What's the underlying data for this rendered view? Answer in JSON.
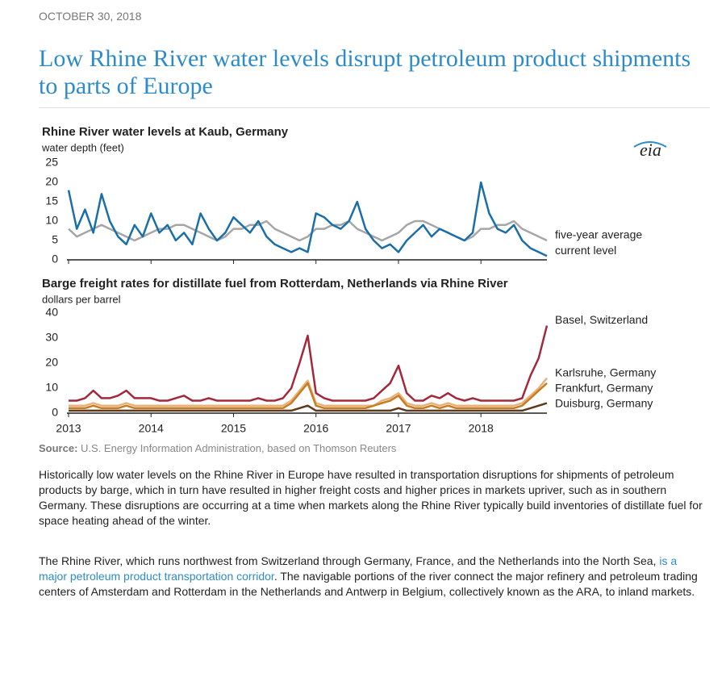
{
  "header": {
    "date": "OCTOBER 30, 2018",
    "title": "Low Rhine River water levels disrupt petroleum product shipments to parts of Europe"
  },
  "logo": "eia",
  "chart_data": [
    {
      "type": "line",
      "title": "Rhine River water levels at Kaub, Germany",
      "subtitle": "water depth (feet)",
      "x": [
        2013.0,
        2013.1,
        2013.2,
        2013.3,
        2013.4,
        2013.5,
        2013.6,
        2013.7,
        2013.8,
        2013.9,
        2014.0,
        2014.1,
        2014.2,
        2014.3,
        2014.4,
        2014.5,
        2014.6,
        2014.7,
        2014.8,
        2014.9,
        2015.0,
        2015.1,
        2015.2,
        2015.3,
        2015.4,
        2015.5,
        2015.6,
        2015.7,
        2015.8,
        2015.9,
        2016.0,
        2016.1,
        2016.2,
        2016.3,
        2016.4,
        2016.5,
        2016.6,
        2016.7,
        2016.8,
        2016.9,
        2017.0,
        2017.1,
        2017.2,
        2017.3,
        2017.4,
        2017.5,
        2017.6,
        2017.7,
        2017.8,
        2017.9,
        2018.0,
        2018.1,
        2018.2,
        2018.3,
        2018.4,
        2018.5,
        2018.6,
        2018.7,
        2018.8
      ],
      "series": [
        {
          "name": "five-year average",
          "color": "#a6a6a6",
          "values": [
            8,
            6,
            7,
            8,
            9,
            8,
            7,
            6,
            5,
            6,
            7,
            8,
            8,
            9,
            9,
            8,
            7,
            6,
            5,
            6,
            8,
            8,
            9,
            9,
            10,
            8,
            7,
            6,
            5,
            6,
            8,
            8,
            9,
            9,
            10,
            8,
            7,
            6,
            5,
            6,
            7,
            9,
            10,
            10,
            9,
            8,
            7,
            6,
            5,
            6,
            8,
            8,
            9,
            9,
            10,
            8,
            7,
            6,
            5
          ]
        },
        {
          "name": "current level",
          "color": "#1b6fa8",
          "values": [
            18,
            8,
            13,
            7,
            17,
            10,
            6,
            4,
            9,
            6,
            12,
            7,
            9,
            5,
            7,
            4,
            12,
            8,
            5,
            7,
            11,
            9,
            7,
            10,
            6,
            4,
            3,
            2,
            3,
            2,
            12,
            11,
            9,
            8,
            10,
            15,
            8,
            5,
            3,
            4,
            2,
            5,
            7,
            9,
            6,
            8,
            7,
            6,
            5,
            7,
            20,
            12,
            8,
            7,
            9,
            5,
            3,
            2,
            1
          ]
        }
      ],
      "xlim": [
        2013,
        2018.8
      ],
      "xticks": [
        2013,
        2014,
        2015,
        2016,
        2017,
        2018
      ],
      "show_xtick_labels": false,
      "ylim": [
        0,
        25
      ],
      "yticks": [
        0,
        5,
        10,
        15,
        20,
        25
      ],
      "grid": false
    },
    {
      "type": "line",
      "title": "Barge freight rates for distillate fuel from Rotterdam, Netherlands via Rhine River",
      "subtitle": "dollars per barrel",
      "x": [
        2013.0,
        2013.1,
        2013.2,
        2013.3,
        2013.4,
        2013.5,
        2013.6,
        2013.7,
        2013.8,
        2013.9,
        2014.0,
        2014.1,
        2014.2,
        2014.3,
        2014.4,
        2014.5,
        2014.6,
        2014.7,
        2014.8,
        2014.9,
        2015.0,
        2015.1,
        2015.2,
        2015.3,
        2015.4,
        2015.5,
        2015.6,
        2015.7,
        2015.8,
        2015.9,
        2016.0,
        2016.1,
        2016.2,
        2016.3,
        2016.4,
        2016.5,
        2016.6,
        2016.7,
        2016.8,
        2016.9,
        2017.0,
        2017.1,
        2017.2,
        2017.3,
        2017.4,
        2017.5,
        2017.6,
        2017.7,
        2017.8,
        2017.9,
        2018.0,
        2018.1,
        2018.2,
        2018.3,
        2018.4,
        2018.5,
        2018.6,
        2018.7,
        2018.8
      ],
      "series": [
        {
          "name": "Basel, Switzerland",
          "color": "#a3283b",
          "values": [
            5,
            5,
            6,
            9,
            6,
            6,
            7,
            9,
            6,
            6,
            6,
            5,
            5,
            6,
            7,
            5,
            5,
            6,
            5,
            5,
            5,
            5,
            5,
            6,
            5,
            5,
            6,
            10,
            20,
            31,
            8,
            6,
            5,
            5,
            5,
            5,
            5,
            6,
            9,
            12,
            19,
            8,
            5,
            5,
            7,
            6,
            8,
            6,
            5,
            6,
            5,
            5,
            5,
            5,
            5,
            6,
            15,
            22,
            35
          ]
        },
        {
          "name": "Karlsruhe, Germany",
          "color": "#e8b27a",
          "values": [
            3,
            3,
            3,
            4,
            3,
            3,
            3,
            4,
            3,
            3,
            3,
            3,
            3,
            3,
            3,
            3,
            3,
            3,
            3,
            3,
            3,
            3,
            3,
            3,
            3,
            3,
            3,
            5,
            9,
            13,
            4,
            3,
            3,
            3,
            3,
            3,
            3,
            3,
            5,
            6,
            8,
            4,
            3,
            3,
            4,
            3,
            4,
            3,
            3,
            3,
            3,
            3,
            3,
            3,
            3,
            4,
            7,
            10,
            14
          ]
        },
        {
          "name": "Frankfurt, Germany",
          "color": "#c87d23",
          "values": [
            2,
            2,
            2,
            3,
            2,
            2,
            2,
            3,
            2,
            2,
            2,
            2,
            2,
            2,
            2,
            2,
            2,
            2,
            2,
            2,
            2,
            2,
            2,
            2,
            2,
            2,
            2,
            4,
            8,
            12,
            3,
            2,
            2,
            2,
            2,
            2,
            2,
            3,
            4,
            5,
            7,
            3,
            2,
            2,
            3,
            2,
            3,
            2,
            2,
            2,
            2,
            2,
            2,
            2,
            2,
            3,
            6,
            9,
            12
          ]
        },
        {
          "name": "Duisburg, Germany",
          "color": "#5c3a1a",
          "values": [
            1,
            1,
            1,
            1,
            1,
            1,
            1,
            1,
            1,
            1,
            1,
            1,
            1,
            1,
            1,
            1,
            1,
            1,
            1,
            1,
            1,
            1,
            1,
            1,
            1,
            1,
            1,
            1,
            2,
            3,
            1,
            1,
            1,
            1,
            1,
            1,
            1,
            1,
            1,
            1,
            2,
            1,
            1,
            1,
            1,
            1,
            1,
            1,
            1,
            1,
            1,
            1,
            1,
            1,
            1,
            1,
            2,
            3,
            4
          ]
        }
      ],
      "xlim": [
        2013,
        2018.8
      ],
      "xticks": [
        2013,
        2014,
        2015,
        2016,
        2017,
        2018
      ],
      "show_xtick_labels": true,
      "ylim": [
        0,
        40
      ],
      "yticks": [
        0,
        10,
        20,
        30,
        40
      ],
      "grid": false
    }
  ],
  "source": {
    "label": "Source:",
    "text": "U.S. Energy Information Administration, based on Thomson Reuters"
  },
  "paragraphs": [
    [
      "Historically low water levels on the Rhine River in Europe have resulted in transportation disruptions for shipments of petroleum products by barge, which in turn have resulted in higher freight costs and higher prices in markets upriver, such as in southern Germany. These disruptions are occurring at a time when markets along the Rhine River typically build inventories of distillate fuel for space heating ahead of the winter."
    ],
    [
      "The Rhine River, which runs northwest from Switzerland through Germany, France, and the Netherlands into the North Sea, ",
      "is a major petroleum product transportation corridor",
      ". The navigable portions of the river connect the major refinery and petroleum trading centers of Amsterdam and Rotterdam in the Netherlands and Antwerp in Belgium, collectively known as the ARA, to inland markets."
    ]
  ]
}
